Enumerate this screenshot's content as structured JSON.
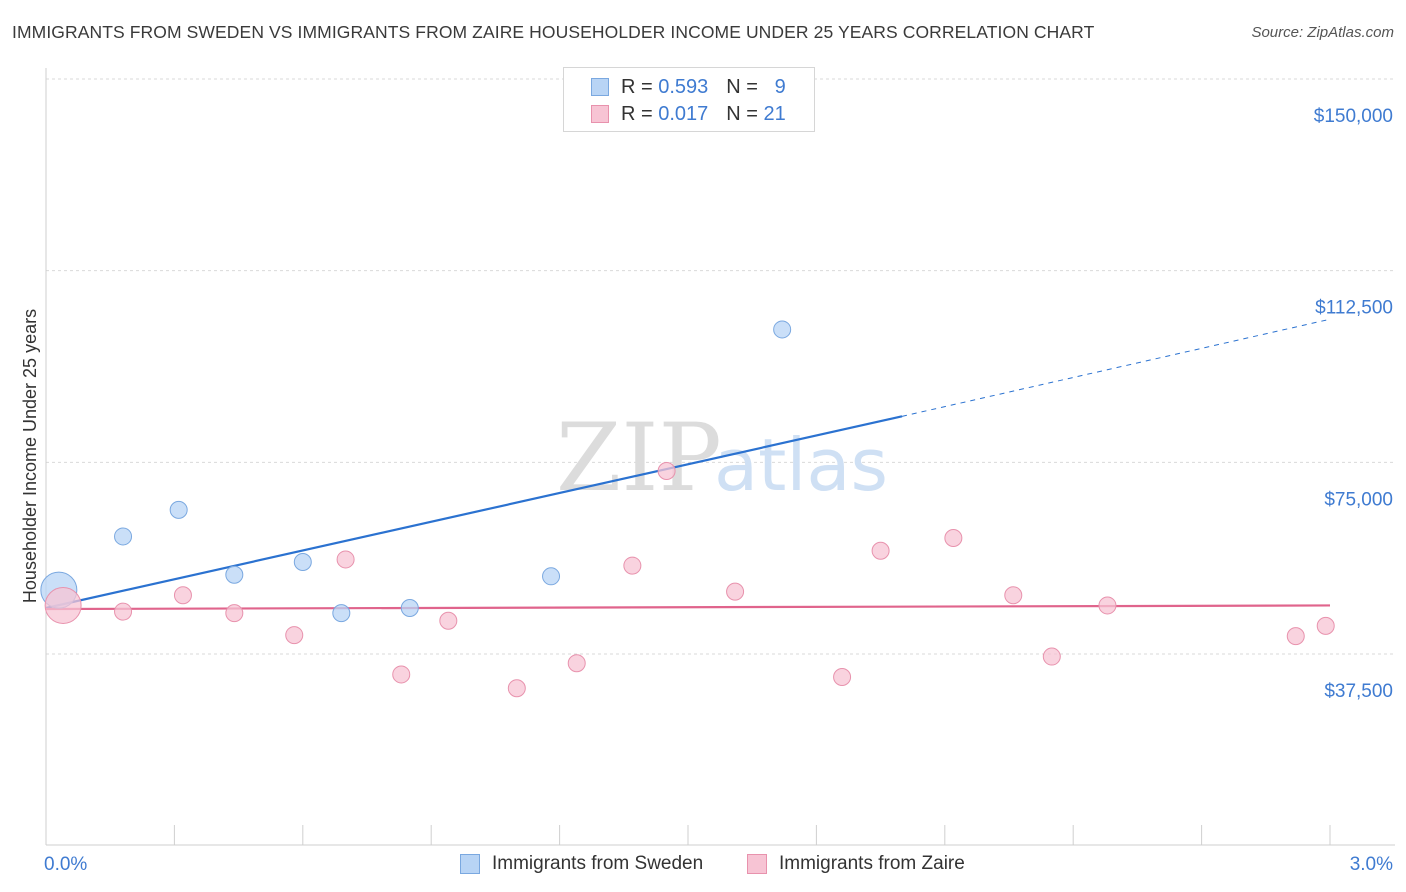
{
  "title": "IMMIGRANTS FROM SWEDEN VS IMMIGRANTS FROM ZAIRE HOUSEHOLDER INCOME UNDER 25 YEARS CORRELATION CHART",
  "source": "Source: ZipAtlas.com",
  "legend": {
    "row1": {
      "r_label": "R =",
      "r_value": "0.593",
      "n_label": "N =",
      "n_value": "9"
    },
    "row2": {
      "r_label": "R =",
      "r_value": "0.017",
      "n_label": "N =",
      "n_value": "21"
    }
  },
  "bottom_legend": {
    "sweden": "Immigrants from Sweden",
    "zaire": "Immigrants from Zaire"
  },
  "colors": {
    "sweden_fill": "#b8d4f5",
    "sweden_stroke": "#7aa8e0",
    "sweden_line": "#2b72d0",
    "zaire_fill": "#f7c4d4",
    "zaire_stroke": "#e892ad",
    "zaire_line": "#e0648c",
    "tick_label": "#3f7bd1"
  },
  "chart_data": {
    "type": "scatter",
    "title": "IMMIGRANTS FROM SWEDEN VS IMMIGRANTS FROM ZAIRE HOUSEHOLDER INCOME UNDER 25 YEARS CORRELATION CHART",
    "xlabel": "",
    "ylabel": "Householder Income Under 25 years",
    "xlim": [
      0,
      3.0
    ],
    "ylim": [
      0,
      155000
    ],
    "x_tick_labels": [
      "0.0%",
      "3.0%"
    ],
    "y_ticks": [
      37500,
      75000,
      112500,
      150000
    ],
    "y_tick_labels": [
      "$37,500",
      "$75,000",
      "$112,500",
      "$150,000"
    ],
    "grid": true,
    "watermark": "ZIPatlas",
    "series": [
      {
        "name": "Immigrants from Sweden",
        "points": [
          {
            "x": 0.03,
            "y": 50000,
            "big": true
          },
          {
            "x": 0.18,
            "y": 60500
          },
          {
            "x": 0.31,
            "y": 65700
          },
          {
            "x": 0.44,
            "y": 53000
          },
          {
            "x": 0.6,
            "y": 55500
          },
          {
            "x": 0.69,
            "y": 45500
          },
          {
            "x": 0.85,
            "y": 46500
          },
          {
            "x": 1.18,
            "y": 52700
          },
          {
            "x": 1.72,
            "y": 101000
          }
        ],
        "trend": {
          "x0": 0.0,
          "y0": 46500,
          "x1": 2.0,
          "y1": 84000,
          "x_dash_end": 3.0,
          "y_dash_end": 103000
        }
      },
      {
        "name": "Immigrants from Zaire",
        "points": [
          {
            "x": 0.04,
            "y": 47000,
            "big": true
          },
          {
            "x": 0.18,
            "y": 45800
          },
          {
            "x": 0.32,
            "y": 49000
          },
          {
            "x": 0.44,
            "y": 45500
          },
          {
            "x": 0.58,
            "y": 41200
          },
          {
            "x": 0.7,
            "y": 56000
          },
          {
            "x": 0.83,
            "y": 33500
          },
          {
            "x": 0.94,
            "y": 44000
          },
          {
            "x": 1.1,
            "y": 30800
          },
          {
            "x": 1.24,
            "y": 35700
          },
          {
            "x": 1.37,
            "y": 54800
          },
          {
            "x": 1.45,
            "y": 73300
          },
          {
            "x": 1.61,
            "y": 49700
          },
          {
            "x": 1.86,
            "y": 33000
          },
          {
            "x": 1.95,
            "y": 57700
          },
          {
            "x": 2.12,
            "y": 60200
          },
          {
            "x": 2.26,
            "y": 49000
          },
          {
            "x": 2.35,
            "y": 37000
          },
          {
            "x": 2.48,
            "y": 47000
          },
          {
            "x": 2.92,
            "y": 41000
          },
          {
            "x": 2.99,
            "y": 43000
          }
        ],
        "trend": {
          "x0": 0.0,
          "y0": 46300,
          "x1": 3.0,
          "y1": 47000
        }
      }
    ]
  }
}
